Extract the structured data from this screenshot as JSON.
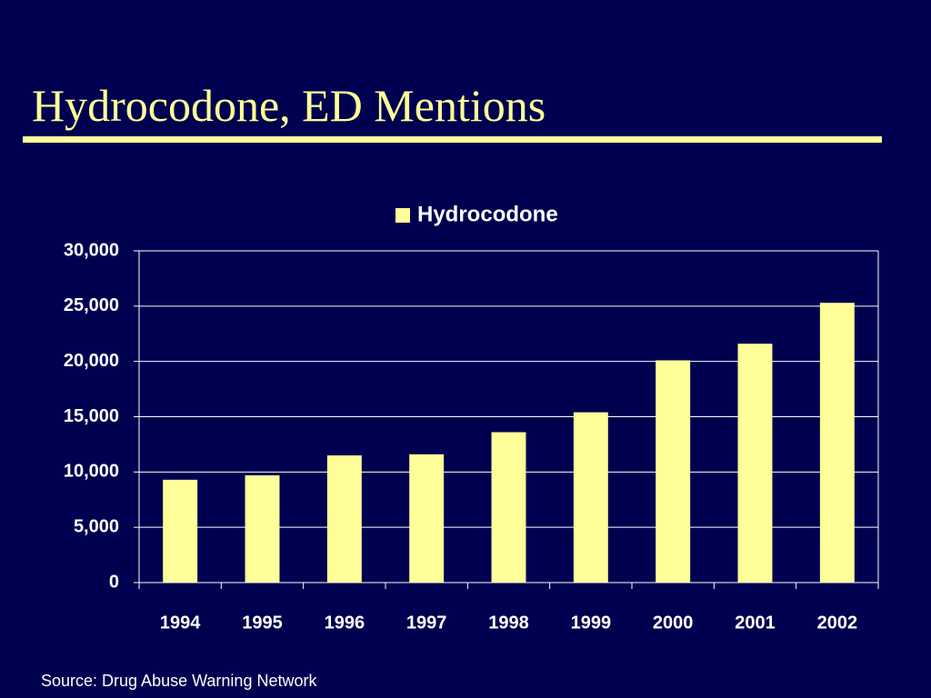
{
  "chart_data": {
    "type": "bar",
    "title": "Hydrocodone, ED Mentions",
    "categories": [
      "1994",
      "1995",
      "1996",
      "1997",
      "1998",
      "1999",
      "2000",
      "2001",
      "2002"
    ],
    "series": [
      {
        "name": "Hydrocodone",
        "color": "#ffff99",
        "values": [
          9300,
          9700,
          11500,
          11600,
          13600,
          15400,
          20100,
          21600,
          25300
        ]
      }
    ],
    "ylim": [
      0,
      30000
    ],
    "yticks": [
      0,
      {
        "value": 5000,
        "label": "5,000"
      },
      {
        "value": 10000,
        "label": "10,000"
      },
      {
        "value": 15000,
        "label": "15,000"
      },
      {
        "value": 20000,
        "label": "20,000"
      },
      {
        "value": 25000,
        "label": "25,000"
      },
      {
        "value": 30000,
        "label": "30,000"
      }
    ],
    "grid": true,
    "legend": "top",
    "source": "Source:  Drug Abuse Warning Network"
  }
}
